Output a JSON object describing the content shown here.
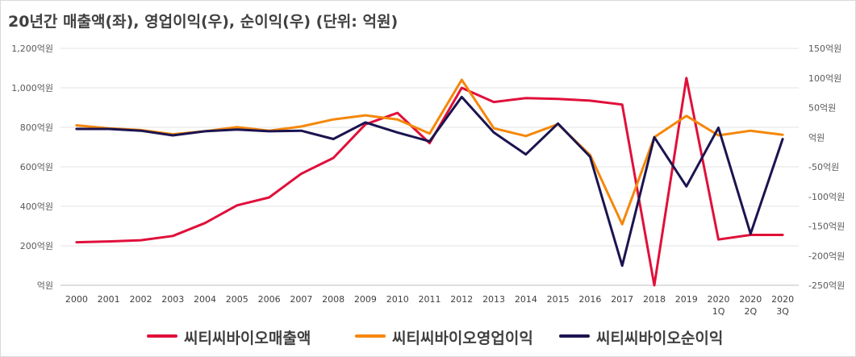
{
  "title": "20년간 매출액(좌), 영업이익(우), 순이익(우) (단위: 억원)",
  "chart_data": {
    "type": "line",
    "title": "20년간 매출액(좌), 영업이익(우), 순이익(우) (단위: 억원)",
    "categories": [
      [
        "2000"
      ],
      [
        "2001"
      ],
      [
        "2002"
      ],
      [
        "2003"
      ],
      [
        "2004"
      ],
      [
        "2005"
      ],
      [
        "2006"
      ],
      [
        "2007"
      ],
      [
        "2008"
      ],
      [
        "2009"
      ],
      [
        "2010"
      ],
      [
        "2011"
      ],
      [
        "2012"
      ],
      [
        "2013"
      ],
      [
        "2014"
      ],
      [
        "2015"
      ],
      [
        "2016"
      ],
      [
        "2017"
      ],
      [
        "2018"
      ],
      [
        "2019"
      ],
      [
        "2020",
        "1Q"
      ],
      [
        "2020",
        "2Q"
      ],
      [
        "2020",
        "3Q"
      ]
    ],
    "y_left": {
      "ylim": [
        0,
        1200
      ],
      "ticks": [
        {
          "value": 0,
          "label": "억원"
        },
        {
          "value": 200,
          "label": "200억원"
        },
        {
          "value": 400,
          "label": "400억원"
        },
        {
          "value": 600,
          "label": "600억원"
        },
        {
          "value": 800,
          "label": "800억원"
        },
        {
          "value": 1000,
          "label": "1,000억원"
        },
        {
          "value": 1200,
          "label": "1,200억원"
        }
      ]
    },
    "y_right": {
      "ylim": [
        -250,
        150
      ],
      "ticks": [
        {
          "value": 150,
          "label": "150억원"
        },
        {
          "value": 100,
          "label": "100억원"
        },
        {
          "value": 50,
          "label": "50억원"
        },
        {
          "value": 0,
          "label": "억원"
        },
        {
          "value": -50,
          "label": "-50억원"
        },
        {
          "value": -100,
          "label": "-100억원"
        },
        {
          "value": -150,
          "label": "-150억원"
        },
        {
          "value": -200,
          "label": "-200억원"
        },
        {
          "value": -250,
          "label": "-250억원"
        }
      ]
    },
    "grid": true,
    "legend_position": "bottom",
    "series": [
      {
        "name": "씨티씨바이오매출액",
        "axis": "left",
        "color": "#e0103a",
        "values": [
          218,
          222,
          228,
          250,
          315,
          405,
          445,
          565,
          645,
          815,
          873,
          720,
          1000,
          928,
          948,
          944,
          935,
          915,
          0,
          1050,
          232,
          255,
          255
        ]
      },
      {
        "name": "씨티씨바이오영업이익",
        "axis": "right",
        "color": "#f5870a",
        "values": [
          20,
          15,
          12,
          5,
          10,
          17,
          11,
          18,
          30,
          37,
          30,
          6,
          97,
          15,
          2,
          22,
          -30,
          -147,
          0,
          36,
          3,
          11,
          4
        ]
      },
      {
        "name": "씨티씨바이오순이익",
        "axis": "right",
        "color": "#1b1450",
        "values": [
          14,
          14,
          11,
          3,
          10,
          13,
          10,
          11,
          -3,
          25,
          8,
          -7,
          68,
          8,
          -29,
          23,
          -33,
          -217,
          0,
          -83,
          16,
          -163,
          -3
        ]
      }
    ]
  }
}
